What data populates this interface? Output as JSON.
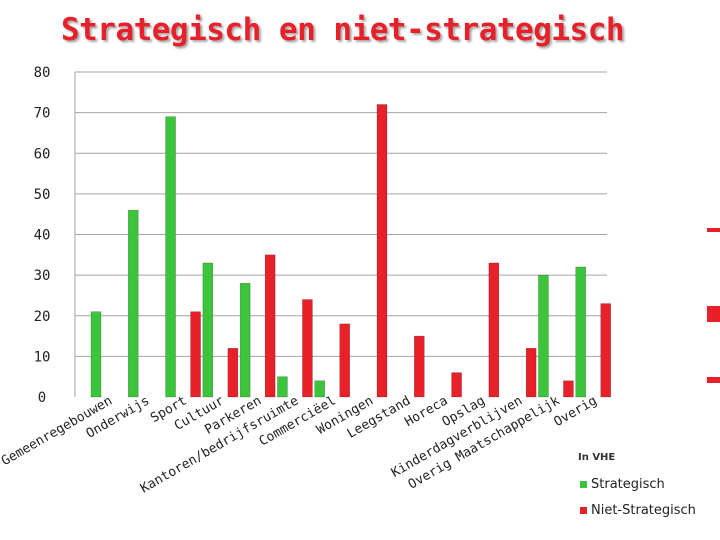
{
  "title": "Strategisch en niet-strategisch",
  "chart_data": {
    "type": "bar",
    "title": "Strategisch en niet-strategisch",
    "xlabel": "",
    "ylabel": "",
    "ylim": [
      0,
      80
    ],
    "yticks": [
      0,
      10,
      20,
      30,
      40,
      50,
      60,
      70,
      80
    ],
    "grid": true,
    "legend": "bottom-right",
    "unit_note": "In VHE",
    "categories": [
      "Gemeenregebouwen",
      "Onderwijs",
      "Sport",
      "Cultuur",
      "Parkeren",
      "Kantoren/bedrijfsruimte",
      "Commerciëel",
      "Woningen",
      "Leegstand",
      "Horeca",
      "Opslag",
      "Kinderdagverblijven",
      "Overig Maatschappelijk",
      "Overig"
    ],
    "series": [
      {
        "name": "Strategisch",
        "color": "#3dc43d",
        "values": [
          21,
          46,
          69,
          33,
          28,
          5,
          4,
          0,
          0,
          0,
          0,
          0,
          30,
          32
        ]
      },
      {
        "name": "Niet-Strategisch",
        "color": "#e8202a",
        "values": [
          0,
          0,
          21,
          12,
          35,
          24,
          18,
          72,
          15,
          6,
          33,
          12,
          4,
          23
        ]
      }
    ]
  }
}
